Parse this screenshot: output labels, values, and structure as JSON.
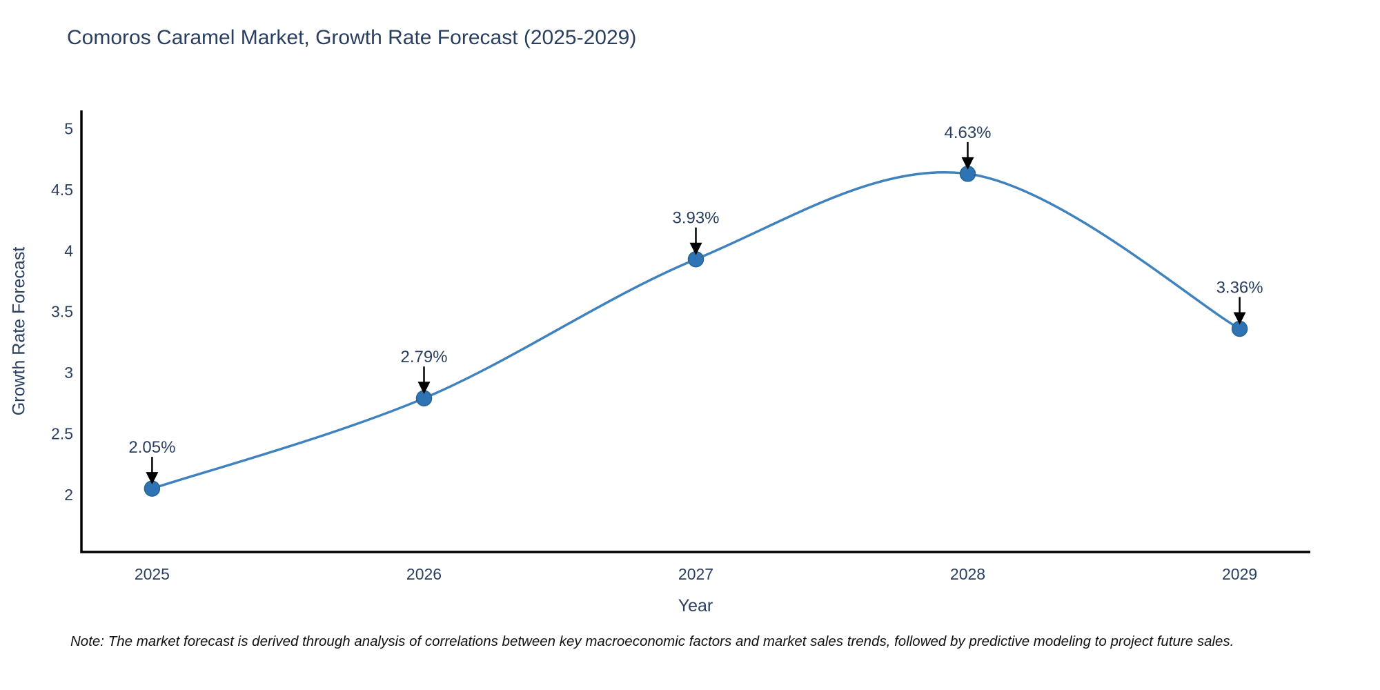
{
  "note": "Note: The market forecast is derived through analysis of correlations between key macroeconomic factors and market sales trends, followed by predictive modeling to project future sales.",
  "chart_data": {
    "type": "line",
    "title": "Comoros Caramel Market, Growth Rate Forecast (2025-2029)",
    "xlabel": "Year",
    "ylabel": "Growth Rate Forecast",
    "x": [
      2025,
      2026,
      2027,
      2028,
      2029
    ],
    "categories": [
      "2025",
      "2026",
      "2027",
      "2028",
      "2029"
    ],
    "values": [
      2.05,
      2.79,
      3.93,
      4.63,
      3.36
    ],
    "point_labels": [
      "2.05%",
      "2.79%",
      "3.93%",
      "4.63%",
      "3.36%"
    ],
    "yticks": [
      2,
      2.5,
      3,
      3.5,
      4,
      4.5,
      5
    ],
    "ylim": [
      1.53,
      5.15
    ],
    "xlim": [
      2024.74,
      2029.26
    ],
    "line_shape": "spline",
    "grid": false,
    "legend": "none",
    "colors": {
      "line": "#3f82bd",
      "marker": "#2e74b5",
      "marker_stroke": "#27648f",
      "text": "#2a3f5f",
      "axis": "#000000",
      "annotation_arrow": "#000000",
      "background": "#ffffff"
    }
  }
}
